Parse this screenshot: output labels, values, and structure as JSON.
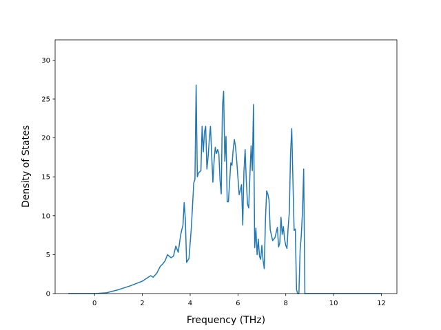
{
  "chart_data": {
    "type": "line",
    "title": "",
    "xlabel": "Frequency (THz)",
    "ylabel": "Density of States",
    "xlim": [
      -1.65,
      12.65
    ],
    "ylim": [
      0,
      32.6
    ],
    "x_ticks": [
      0,
      2,
      4,
      6,
      8,
      10,
      12
    ],
    "y_ticks": [
      0,
      5,
      10,
      15,
      20,
      25,
      30
    ],
    "grid": false,
    "legend": "none",
    "line_color": "#1f77b4",
    "series": [
      {
        "x": [
          -1.1,
          0.0,
          0.5,
          1.0,
          1.5,
          2.0,
          2.2,
          2.35,
          2.45,
          2.6,
          2.75,
          2.85,
          2.95,
          3.05,
          3.2,
          3.3,
          3.4,
          3.5,
          3.6,
          3.65,
          3.7,
          3.75,
          3.8,
          3.85,
          3.95,
          4.05,
          4.15,
          4.2,
          4.25,
          4.3,
          4.35,
          4.45,
          4.5,
          4.55,
          4.6,
          4.65,
          4.7,
          4.75,
          4.8,
          4.85,
          4.95,
          5.0,
          5.05,
          5.1,
          5.15,
          5.2,
          5.25,
          5.3,
          5.35,
          5.4,
          5.45,
          5.5,
          5.55,
          5.6,
          5.7,
          5.75,
          5.8,
          5.85,
          5.9,
          5.95,
          6.05,
          6.15,
          6.2,
          6.25,
          6.3,
          6.35,
          6.4,
          6.45,
          6.5,
          6.55,
          6.6,
          6.65,
          6.7,
          6.75,
          6.8,
          6.85,
          6.9,
          6.95,
          7.0,
          7.05,
          7.1,
          7.15,
          7.2,
          7.25,
          7.3,
          7.35,
          7.45,
          7.55,
          7.65,
          7.7,
          7.75,
          7.8,
          7.85,
          7.9,
          7.95,
          8.0,
          8.05,
          8.1,
          8.15,
          8.2,
          8.25,
          8.3,
          8.35,
          8.4,
          8.45,
          8.5,
          8.55,
          8.6,
          8.65,
          8.7,
          8.75,
          8.8,
          8.85,
          8.9,
          8.95,
          9.0,
          9.05,
          9.1,
          9.15,
          9.2,
          9.25,
          9.3,
          9.35,
          9.4,
          10.3,
          10.35,
          10.4,
          10.45,
          10.5,
          10.55,
          10.6,
          10.65,
          10.7,
          10.75,
          10.8,
          10.85,
          10.9,
          12.0
        ],
        "y": [
          0,
          0,
          0.1,
          0.5,
          1.0,
          1.6,
          2.0,
          2.3,
          2.1,
          2.6,
          3.5,
          3.8,
          4.2,
          5.0,
          4.6,
          4.8,
          6.1,
          5.3,
          7.5,
          8.2,
          8.8,
          11.7,
          9.5,
          4.0,
          4.5,
          8.5,
          14.2,
          14.7,
          26.8,
          15.0,
          15.5,
          15.8,
          21.5,
          18.2,
          20.8,
          21.5,
          16.0,
          17.5,
          19.8,
          21.5,
          14.3,
          17.0,
          18.8,
          18.0,
          18.5,
          18.0,
          14.5,
          12.8,
          24.0,
          26.0,
          17.0,
          20.2,
          11.8,
          11.8,
          16.8,
          16.5,
          18.5,
          19.8,
          18.8,
          17.0,
          12.7,
          14.0,
          8.8,
          15.7,
          18.5,
          14.5,
          11.5,
          11.0,
          15.2,
          19.0,
          15.8,
          24.3,
          5.9,
          8.4,
          5.0,
          7.0,
          4.8,
          4.4,
          6.2,
          4.3,
          3.2,
          9.5,
          13.2,
          12.8,
          12.0,
          8.2,
          6.8,
          7.2,
          8.5,
          6.0,
          6.5,
          9.8,
          7.6,
          8.6,
          7.0,
          6.2,
          5.8,
          8.5,
          10.5,
          18.0,
          21.2,
          14.5,
          8.1,
          8.3,
          0.5,
          0,
          0,
          5.5,
          7.5,
          10.5,
          16.0,
          0,
          0,
          0,
          0,
          0,
          0,
          0,
          0,
          0,
          0,
          0,
          0,
          0,
          0,
          0,
          0,
          0,
          0,
          0,
          0,
          0,
          0,
          0,
          0,
          0,
          0,
          0
        ]
      }
    ]
  }
}
